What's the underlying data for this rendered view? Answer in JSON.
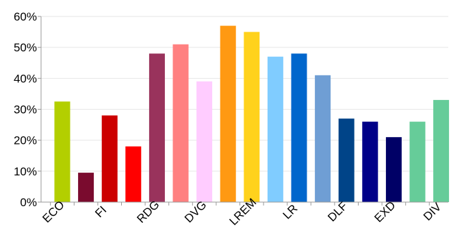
{
  "chart_data": {
    "type": "bar",
    "categories": [
      "ECO",
      "",
      "FI",
      "",
      "RDG",
      "",
      "DVG",
      "",
      "LREM",
      "",
      "LR",
      "",
      "DLF",
      "",
      "EXD",
      "",
      "DIV"
    ],
    "values": [
      32.5,
      9.5,
      28,
      18,
      48,
      51,
      39,
      57,
      55,
      47,
      48,
      41,
      27,
      26,
      21,
      26,
      33
    ],
    "bar_colors": [
      "#b3cf00",
      "#7a0b2e",
      "#cc0000",
      "#ff0000",
      "#99335c",
      "#ff8080",
      "#ffccff",
      "#ff9912",
      "#ffd21c",
      "#80ccff",
      "#0066cc",
      "#6f9ed4",
      "#004488",
      "#000088",
      "#000066",
      "#66cc99",
      "#66cc99"
    ],
    "y_ticks": [
      "0%",
      "10%",
      "20%",
      "30%",
      "40%",
      "50%",
      "60%"
    ],
    "ylim": [
      0,
      60
    ],
    "grid": true,
    "legend": "none"
  }
}
